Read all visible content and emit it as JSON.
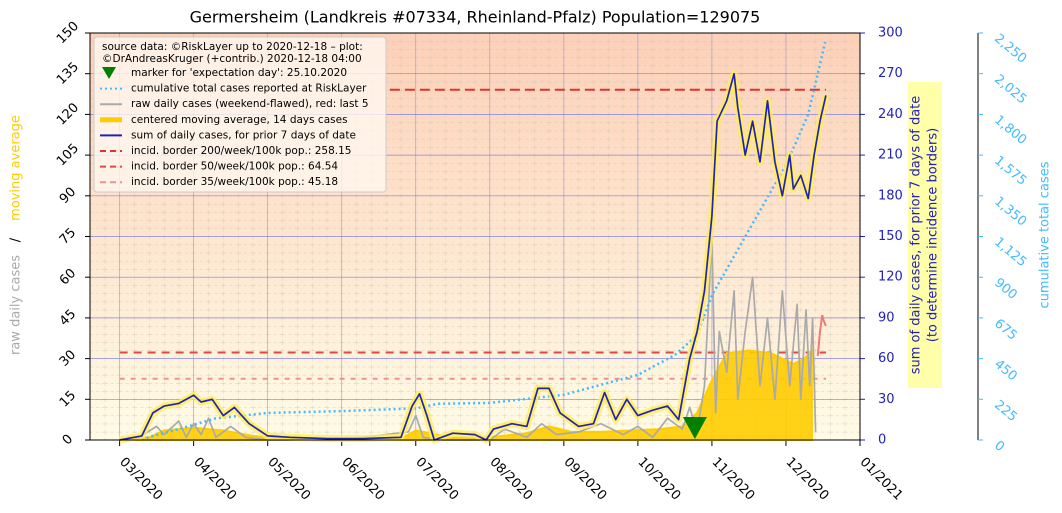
{
  "chart_data": {
    "type": "line",
    "title": "Germersheim (Landkreis #07334, Rheinland-Pfalz) Population=129075",
    "source_note": [
      "source data: ©RiskLayer up to 2020-12-18 – plot:",
      "©DrAndreasKruger (+contrib.) 2020-12-18 04:00"
    ],
    "legend": "upper left",
    "grid": true,
    "xlim": [
      2.6,
      13
    ],
    "xticks": [
      {
        "value": 3,
        "label": "03/2020"
      },
      {
        "value": 4,
        "label": "04/2020"
      },
      {
        "value": 5,
        "label": "05/2020"
      },
      {
        "value": 6,
        "label": "06/2020"
      },
      {
        "value": 7,
        "label": "07/2020"
      },
      {
        "value": 8,
        "label": "08/2020"
      },
      {
        "value": 9,
        "label": "09/2020"
      },
      {
        "value": 10,
        "label": "10/2020"
      },
      {
        "value": 11,
        "label": "11/2020"
      },
      {
        "value": 12,
        "label": "12/2020"
      },
      {
        "value": 13,
        "label": "01/2021"
      }
    ],
    "ylim": [
      0,
      150
    ],
    "yticks": [
      0,
      15,
      30,
      45,
      60,
      75,
      90,
      105,
      120,
      135,
      150
    ],
    "ylabel": [
      {
        "text": "raw daily cases",
        "color": "#aaaaaa"
      },
      {
        "text": "/",
        "color": "#000000"
      },
      {
        "text": "moving average",
        "color": "#ffcc00"
      }
    ],
    "y2lim": [
      0,
      300
    ],
    "y2ticks": [
      0,
      30,
      60,
      90,
      120,
      150,
      180,
      210,
      240,
      270,
      300
    ],
    "y2label": [
      "sum of daily cases, for prior 7 days of date",
      "(to determine incidence borders)"
    ],
    "y3lim": [
      0,
      2250
    ],
    "y3ticks": [
      0,
      225,
      450,
      675,
      900,
      {
        "value": 1125,
        "label": "1,125"
      },
      {
        "value": 1350,
        "label": "1,350"
      },
      {
        "value": 1575,
        "label": "1,575"
      },
      {
        "value": 1800,
        "label": "1,800"
      },
      {
        "value": 2025,
        "label": "2,025"
      },
      {
        "value": 2250,
        "label": "2,250"
      }
    ],
    "y3label": "cumulative total cases",
    "marker": {
      "name": "marker for 'expectation day': 25.10.2020",
      "x": 10.77,
      "color": "#008000"
    },
    "series": [
      {
        "name": "cumulative total cases reported at RiskLayer",
        "color": "#44bbff",
        "style": "dotted",
        "axis": "y3",
        "x": [
          3.3,
          3.8,
          4.3,
          5.0,
          6.0,
          7.0,
          7.3,
          8.0,
          9.0,
          10.0,
          10.5,
          10.8,
          11.0,
          11.5,
          12.0,
          12.3,
          12.53
        ],
        "values": [
          5,
          60,
          120,
          150,
          160,
          175,
          200,
          205,
          250,
          360,
          470,
          580,
          800,
          1160,
          1520,
          1800,
          2200
        ]
      },
      {
        "name": "raw daily cases (weekend-flawed), red: last 5",
        "color": "#aaaaaa",
        "style": "solid",
        "axis": "y",
        "x": [
          3.2,
          3.5,
          3.6,
          3.8,
          3.9,
          4.0,
          4.1,
          4.2,
          4.3,
          4.5,
          4.7,
          5.0,
          6.0,
          6.9,
          7.0,
          7.1,
          7.3,
          8.0,
          8.2,
          8.5,
          8.7,
          8.9,
          9.2,
          9.5,
          9.8,
          10.0,
          10.2,
          10.4,
          10.6,
          10.7,
          10.8,
          10.9,
          11.0,
          11.05,
          11.1,
          11.2,
          11.3,
          11.35,
          11.45,
          11.55,
          11.65,
          11.75,
          11.85,
          11.95,
          12.05,
          12.15,
          12.2,
          12.27,
          12.32,
          12.36,
          12.4
        ],
        "values": [
          0,
          5,
          2,
          7,
          1,
          6,
          2,
          8,
          1,
          5,
          1,
          0,
          0,
          3,
          9,
          1,
          0,
          0,
          4,
          1,
          6,
          2,
          3,
          6,
          2,
          5,
          1,
          8,
          4,
          12,
          3,
          20,
          75,
          10,
          40,
          25,
          55,
          15,
          40,
          60,
          20,
          45,
          15,
          55,
          20,
          50,
          15,
          48,
          20,
          45,
          3
        ],
        "highlight": {
          "color": "#f07878",
          "x": [
            12.43,
            12.46,
            12.49,
            12.51,
            12.54
          ],
          "values": [
            31,
            40,
            46,
            44,
            42
          ]
        }
      },
      {
        "name": "centered moving average, 14 days cases",
        "color": "#ffcc00",
        "style": "area",
        "axis": "y",
        "x": [
          3.0,
          3.4,
          3.6,
          4.0,
          4.4,
          4.8,
          5.2,
          6.0,
          6.8,
          7.0,
          7.2,
          7.5,
          8.0,
          8.5,
          8.8,
          9.1,
          9.5,
          9.9,
          10.3,
          10.6,
          10.8,
          11.0,
          11.2,
          11.5,
          11.8,
          12.1,
          12.25,
          12.35
        ],
        "values": [
          0,
          1,
          3.5,
          4.5,
          3.5,
          1.5,
          0.5,
          0.2,
          0.5,
          3.5,
          2.5,
          0.8,
          1,
          2.5,
          5,
          3,
          3,
          3.5,
          4,
          5,
          10,
          22,
          32,
          33,
          32,
          28,
          30,
          33
        ]
      },
      {
        "name": "sum of daily cases, for prior 7 days of date",
        "color": "#2222bb",
        "style": "solid",
        "axis": "y2",
        "halo": "#ffee55",
        "x": [
          3.0,
          3.3,
          3.45,
          3.6,
          3.8,
          4.0,
          4.1,
          4.25,
          4.4,
          4.55,
          4.75,
          5.0,
          5.3,
          5.8,
          6.3,
          6.8,
          6.95,
          7.05,
          7.15,
          7.25,
          7.5,
          7.8,
          7.95,
          8.05,
          8.3,
          8.5,
          8.65,
          8.8,
          8.95,
          9.2,
          9.4,
          9.55,
          9.7,
          9.85,
          10.0,
          10.2,
          10.4,
          10.55,
          10.7,
          10.8,
          10.9,
          11.0,
          11.07,
          11.2,
          11.3,
          11.35,
          11.45,
          11.55,
          11.65,
          11.75,
          11.85,
          11.95,
          12.05,
          12.1,
          12.2,
          12.3,
          12.38,
          12.46,
          12.54
        ],
        "values": [
          0,
          3,
          20,
          25,
          27,
          33,
          28,
          30,
          18,
          24,
          12,
          3,
          2,
          1,
          1,
          2,
          25,
          34,
          18,
          0,
          5,
          4,
          0,
          8,
          12,
          10,
          38,
          38,
          20,
          10,
          12,
          35,
          15,
          30,
          18,
          22,
          25,
          15,
          60,
          80,
          110,
          165,
          235,
          250,
          270,
          245,
          210,
          235,
          205,
          250,
          205,
          180,
          210,
          185,
          195,
          178,
          210,
          235,
          254
        ]
      }
    ],
    "borders": [
      {
        "name": "incid. border 200/week/100k pop.: 258.15",
        "value": 258.15,
        "color": "#dd3333",
        "dash": "10 5",
        "x": [
          6.65,
          12.54
        ]
      },
      {
        "name": "incid. border 50/week/100k pop.: 64.54",
        "value": 64.54,
        "color": "#e04848",
        "dash": "8 6",
        "x": [
          3.0,
          12.54
        ]
      },
      {
        "name": "incid. border 35/week/100k pop.: 45.18",
        "value": 45.18,
        "color": "#f09090",
        "dash": "5 6",
        "x": [
          3.0,
          12.54
        ]
      }
    ]
  }
}
